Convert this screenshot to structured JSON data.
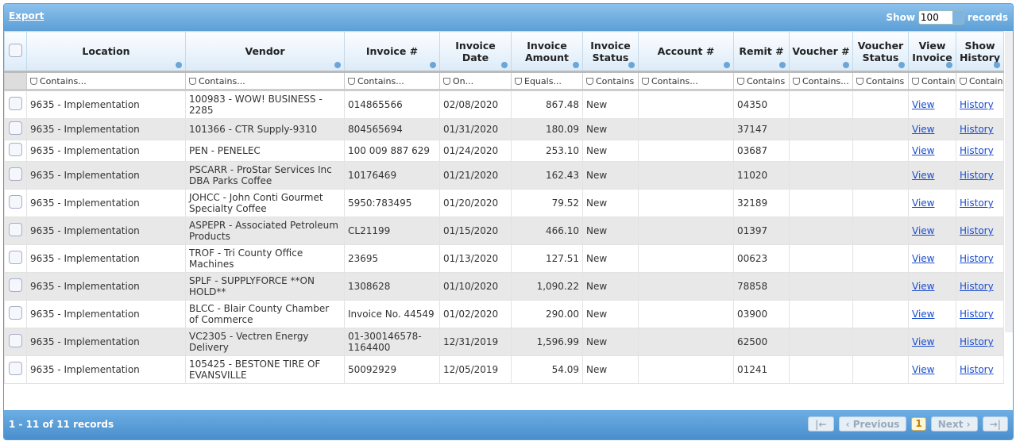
{
  "toolbar": {
    "export": "Export",
    "show_label": "Show",
    "page_size": "100",
    "records_label": "records"
  },
  "columns": [
    "Location",
    "Vendor",
    "Invoice #",
    "Invoice Date",
    "Invoice Amount",
    "Invoice Status",
    "Account #",
    "Remit #",
    "Voucher #",
    "Voucher Status",
    "View Invoice",
    "Show History"
  ],
  "filters": [
    "Contains...",
    "Contains...",
    "Contains...",
    "On...",
    "Equals...",
    "Contains",
    "Contains...",
    "Contains",
    "Contains...",
    "Contains",
    "Contains",
    "Contains"
  ],
  "rows": [
    {
      "location": "9635 - Implementation",
      "vendor": "100983 - WOW! BUSINESS - 2285",
      "invoice": "014865566",
      "date": "02/08/2020",
      "amount": "867.48",
      "status": "New",
      "remit": "04350",
      "view": "View",
      "history": "History"
    },
    {
      "location": "9635 - Implementation",
      "vendor": "101366 - CTR Supply-9310",
      "invoice": "804565694",
      "date": "01/31/2020",
      "amount": "180.09",
      "status": "New",
      "remit": "37147",
      "view": "View",
      "history": "History"
    },
    {
      "location": "9635 - Implementation",
      "vendor": "PEN - PENELEC",
      "invoice": "100 009 887 629",
      "date": "01/24/2020",
      "amount": "253.10",
      "status": "New",
      "remit": "03687",
      "view": "View",
      "history": "History"
    },
    {
      "location": "9635 - Implementation",
      "vendor": "PSCARR - ProStar Services Inc DBA Parks Coffee",
      "invoice": "10176469",
      "date": "01/21/2020",
      "amount": "162.43",
      "status": "New",
      "remit": "11020",
      "view": "View",
      "history": "History"
    },
    {
      "location": "9635 - Implementation",
      "vendor": "JOHCC - John Conti Gourmet Specialty Coffee",
      "invoice": "5950:783495",
      "date": "01/20/2020",
      "amount": "79.52",
      "status": "New",
      "remit": "32189",
      "view": "View",
      "history": "History"
    },
    {
      "location": "9635 - Implementation",
      "vendor": "ASPEPR - Associated Petroleum Products",
      "invoice": "CL21199",
      "date": "01/15/2020",
      "amount": "466.10",
      "status": "New",
      "remit": "01397",
      "view": "View",
      "history": "History"
    },
    {
      "location": "9635 - Implementation",
      "vendor": "TROF - Tri County Office Machines",
      "invoice": "23695",
      "date": "01/13/2020",
      "amount": "127.51",
      "status": "New",
      "remit": "00623",
      "view": "View",
      "history": "History"
    },
    {
      "location": "9635 - Implementation",
      "vendor": "SPLF - SUPPLYFORCE **ON HOLD**",
      "invoice": "1308628",
      "date": "01/10/2020",
      "amount": "1,090.22",
      "status": "New",
      "remit": "78858",
      "view": "View",
      "history": "History"
    },
    {
      "location": "9635 - Implementation",
      "vendor": "BLCC - Blair County Chamber of Commerce",
      "invoice": "Invoice No. 44549",
      "date": "01/02/2020",
      "amount": "290.00",
      "status": "New",
      "remit": "03900",
      "view": "View",
      "history": "History"
    },
    {
      "location": "9635 - Implementation",
      "vendor": "VC2305 - Vectren Energy Delivery",
      "invoice": "01-300146578-1164400",
      "date": "12/31/2019",
      "amount": "1,596.99",
      "status": "New",
      "remit": "62500",
      "view": "View",
      "history": "History"
    },
    {
      "location": "9635 - Implementation",
      "vendor": "105425 - BESTONE TIRE OF EVANSVILLE",
      "invoice": "50092929",
      "date": "12/05/2019",
      "amount": "54.09",
      "status": "New",
      "remit": "01241",
      "view": "View",
      "history": "History"
    }
  ],
  "footer": {
    "summary": "1 - 11 of 11 records",
    "previous": "Previous",
    "page": "1",
    "next": "Next"
  }
}
